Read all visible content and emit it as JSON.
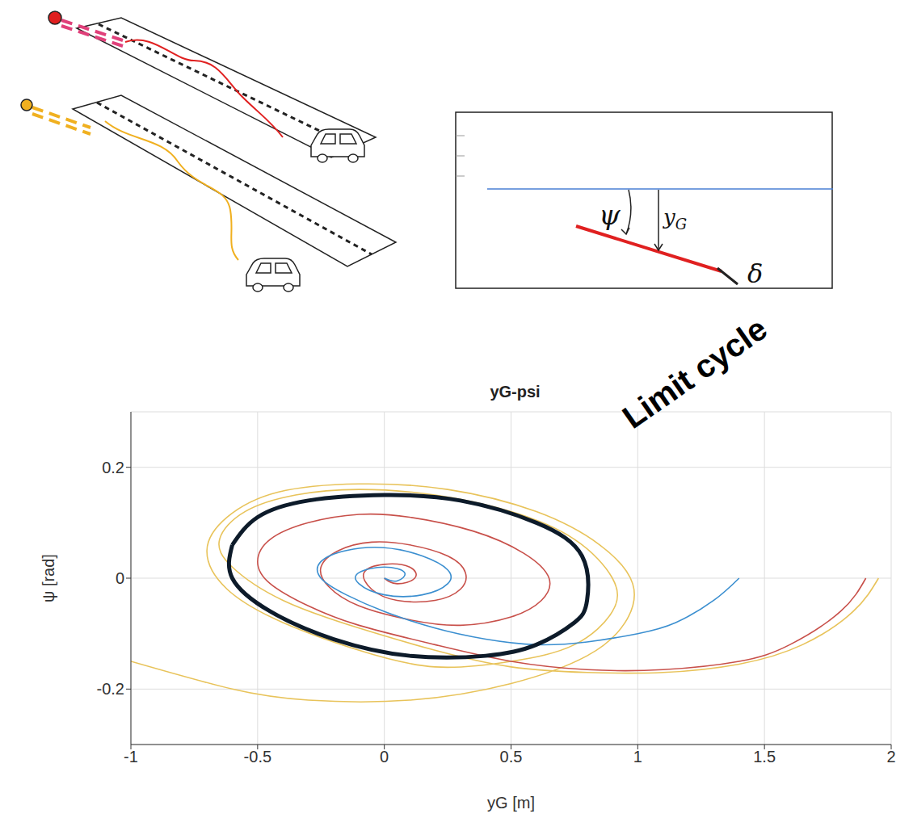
{
  "chart_data": {
    "type": "line",
    "title": "yG-psi",
    "x_label": "yG  [m]",
    "y_label": "ψ  [rad]",
    "xlim": [
      -1,
      2
    ],
    "xticks": [
      -1,
      -0.5,
      0,
      0.5,
      1,
      1.5,
      2
    ],
    "ylim": [
      -0.3,
      0.3
    ],
    "yticks": [
      -0.2,
      0,
      0.2
    ],
    "grid": true,
    "series": [
      {
        "color": "#e8c35a",
        "x": [
          1.95,
          1.85,
          1.65,
          1.4,
          1.1,
          0.8,
          0.5,
          0.2,
          -0.1,
          -0.4,
          -0.6,
          -0.65,
          -0.55,
          -0.35,
          -0.1,
          0.2,
          0.5,
          0.75,
          0.9,
          0.9,
          0.75,
          0.5,
          0.2,
          -0.1,
          -0.4,
          -0.62,
          -0.7,
          -0.62,
          -0.42,
          -0.1,
          0.25,
          0.6,
          0.85,
          0.98,
          0.95,
          0.8,
          0.5,
          0.1,
          -0.3,
          -0.6,
          -1.0
        ],
        "values": [
          0,
          -0.06,
          -0.12,
          -0.155,
          -0.17,
          -0.17,
          -0.16,
          -0.13,
          -0.09,
          -0.04,
          0.02,
          0.07,
          0.12,
          0.15,
          0.16,
          0.15,
          0.12,
          0.07,
          0.0,
          -0.06,
          -0.12,
          -0.15,
          -0.16,
          -0.13,
          -0.08,
          -0.02,
          0.05,
          0.11,
          0.155,
          0.17,
          0.16,
          0.12,
          0.06,
          -0.01,
          -0.08,
          -0.14,
          -0.19,
          -0.22,
          -0.22,
          -0.2,
          -0.15
        ]
      },
      {
        "color": "#c8504a",
        "x": [
          1.9,
          1.8,
          1.6,
          1.4,
          1.1,
          0.8,
          0.5,
          0.2,
          -0.1,
          -0.3,
          -0.45,
          -0.5,
          -0.45,
          -0.3,
          -0.1,
          0.1,
          0.35,
          0.55,
          0.65,
          0.62,
          0.5,
          0.3,
          0.1,
          -0.1,
          -0.22,
          -0.25,
          -0.18,
          -0.05,
          0.1,
          0.25,
          0.32,
          0.3,
          0.2,
          0.05,
          -0.05,
          -0.08,
          0.0,
          0.1,
          0.12,
          0.05,
          0.0
        ],
        "values": [
          0,
          -0.06,
          -0.12,
          -0.15,
          -0.165,
          -0.165,
          -0.15,
          -0.12,
          -0.085,
          -0.05,
          -0.01,
          0.03,
          0.07,
          0.1,
          0.115,
          0.11,
          0.085,
          0.045,
          0.0,
          -0.04,
          -0.07,
          -0.085,
          -0.075,
          -0.05,
          -0.015,
          0.02,
          0.05,
          0.065,
          0.06,
          0.04,
          0.01,
          -0.02,
          -0.04,
          -0.04,
          -0.02,
          0.01,
          0.025,
          0.02,
          0.0,
          -0.01,
          0.0
        ]
      },
      {
        "color": "#3b8fd0",
        "x": [
          1.4,
          1.3,
          1.15,
          1.0,
          0.8,
          0.6,
          0.4,
          0.2,
          0.0,
          -0.15,
          -0.25,
          -0.25,
          -0.15,
          0.0,
          0.15,
          0.25,
          0.25,
          0.15,
          0.0,
          -0.1,
          -0.1,
          0.0,
          0.08,
          0.05,
          0.0
        ],
        "values": [
          0,
          -0.04,
          -0.08,
          -0.1,
          -0.115,
          -0.12,
          -0.11,
          -0.09,
          -0.06,
          -0.03,
          0.0,
          0.03,
          0.05,
          0.055,
          0.04,
          0.015,
          -0.01,
          -0.03,
          -0.03,
          -0.01,
          0.01,
          0.02,
          0.01,
          -0.005,
          0.0
        ]
      },
      {
        "name": "Limit cycle",
        "color": "#0d1b2a",
        "x": [
          -0.6,
          -0.5,
          -0.3,
          0.0,
          0.3,
          0.6,
          0.78,
          0.8,
          0.75,
          0.6,
          0.4,
          0.1,
          -0.2,
          -0.45,
          -0.6,
          -0.6
        ],
        "values": [
          0.06,
          0.11,
          0.14,
          0.15,
          0.14,
          0.1,
          0.04,
          -0.04,
          -0.08,
          -0.12,
          -0.14,
          -0.14,
          -0.11,
          -0.06,
          0.0,
          0.06
        ]
      }
    ]
  },
  "diagram": {
    "psi": "ψ",
    "y": {
      "text": "y",
      "subscript": "G"
    },
    "delta": "δ"
  }
}
